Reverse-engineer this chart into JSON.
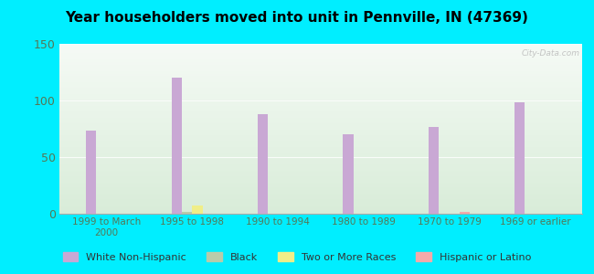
{
  "title": "Year householders moved into unit in Pennville, IN (47369)",
  "categories": [
    "1999 to March\n2000",
    "1995 to 1998",
    "1990 to 1994",
    "1980 to 1989",
    "1970 to 1979",
    "1969 or earlier"
  ],
  "series": {
    "White Non-Hispanic": [
      73,
      120,
      88,
      70,
      77,
      98
    ],
    "Black": [
      0,
      2,
      0,
      0,
      0,
      0
    ],
    "Two or More Races": [
      0,
      7,
      0,
      0,
      0,
      0
    ],
    "Hispanic or Latino": [
      0,
      0,
      0,
      0,
      2,
      0
    ]
  },
  "colors": {
    "White Non-Hispanic": "#c9a8d4",
    "Black": "#b8ccaa",
    "Two or More Races": "#f0ee88",
    "Hispanic or Latino": "#f4aaaa"
  },
  "ylim": [
    0,
    150
  ],
  "yticks": [
    0,
    50,
    100,
    150
  ],
  "background_color": "#00eeff",
  "plot_bg_top": "#f5faf5",
  "plot_bg_bottom": "#d8ecd8",
  "watermark": "City-Data.com",
  "bar_width": 0.12,
  "tick_color": "#557755",
  "label_color": "#557755"
}
